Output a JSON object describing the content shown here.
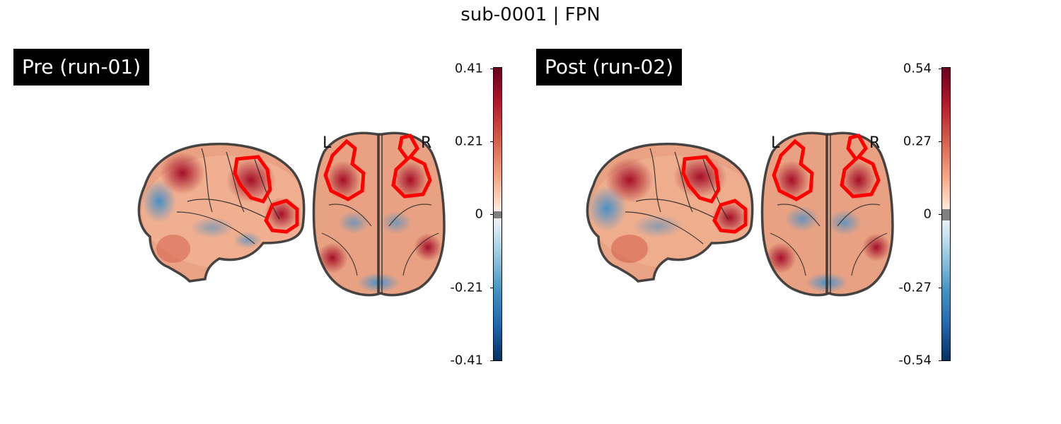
{
  "figure": {
    "title": "sub-0001 | FPN"
  },
  "panels": [
    {
      "id": "pre",
      "label": "Pre (run-01)",
      "colorbar": {
        "colormap": "RdBu_r",
        "vmin": -0.41,
        "vmax": 0.41,
        "ticks": [
          "0.41",
          "0.21",
          "0",
          "-0.21",
          "-0.41"
        ],
        "threshold_band": "#808080"
      },
      "orientation_labels": {
        "left": "L",
        "right": "R"
      },
      "contour_color": "#ff0000"
    },
    {
      "id": "post",
      "label": "Post (run-02)",
      "colorbar": {
        "colormap": "RdBu_r",
        "vmin": -0.54,
        "vmax": 0.54,
        "ticks": [
          "0.54",
          "0.27",
          "0",
          "-0.27",
          "-0.54"
        ],
        "threshold_band": "#808080"
      },
      "orientation_labels": {
        "left": "L",
        "right": "R"
      },
      "contour_color": "#ff0000"
    }
  ]
}
